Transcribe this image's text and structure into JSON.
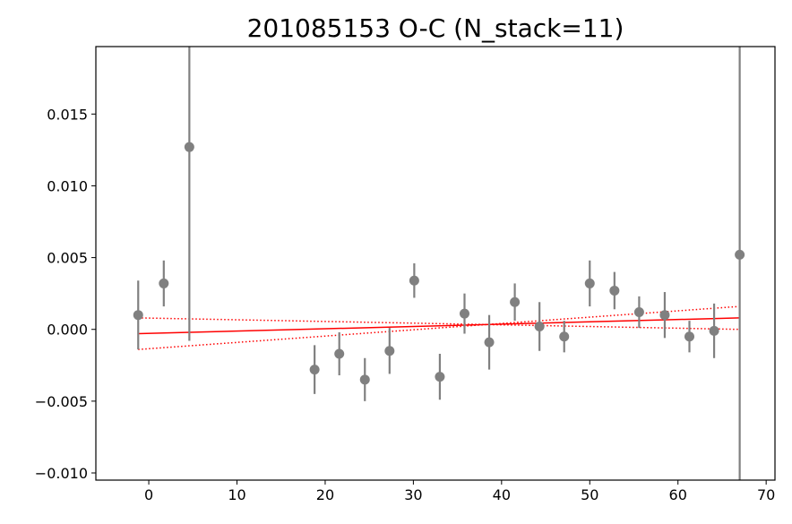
{
  "chart_data": {
    "type": "scatter",
    "title": "201085153 O-C (N_stack=11)",
    "xlabel": "",
    "ylabel": "",
    "xlim": [
      -6,
      71
    ],
    "ylim": [
      -0.0105,
      0.0197
    ],
    "xticks": [
      0,
      10,
      20,
      30,
      40,
      50,
      60,
      70
    ],
    "yticks": [
      -0.01,
      -0.005,
      0.0,
      0.005,
      0.01,
      0.015
    ],
    "xtick_labels": [
      "0",
      "10",
      "20",
      "30",
      "40",
      "50",
      "60",
      "70"
    ],
    "ytick_labels": [
      "−0.010",
      "−0.005",
      "0.000",
      "0.005",
      "0.010",
      "0.015"
    ],
    "grid": false,
    "colors": {
      "points": "#808080",
      "fit": "#ff0000"
    },
    "series": [
      {
        "type": "errorbar",
        "points": [
          {
            "x": -1.2,
            "y": 0.001,
            "yerr": 0.0024
          },
          {
            "x": 1.7,
            "y": 0.0032,
            "yerr": 0.0016
          },
          {
            "x": 4.6,
            "y": 0.0127,
            "yerr": 0.0135
          },
          {
            "x": 18.8,
            "y": -0.0028,
            "yerr": 0.0017
          },
          {
            "x": 21.6,
            "y": -0.0017,
            "yerr": 0.0015
          },
          {
            "x": 24.5,
            "y": -0.0035,
            "yerr": 0.0015
          },
          {
            "x": 27.3,
            "y": -0.0015,
            "yerr": 0.0016
          },
          {
            "x": 30.1,
            "y": 0.0034,
            "yerr": 0.0012
          },
          {
            "x": 33.0,
            "y": -0.0033,
            "yerr": 0.0016
          },
          {
            "x": 35.8,
            "y": 0.0011,
            "yerr": 0.0014
          },
          {
            "x": 38.6,
            "y": -0.0009,
            "yerr": 0.0019
          },
          {
            "x": 41.5,
            "y": 0.0019,
            "yerr": 0.0013
          },
          {
            "x": 44.3,
            "y": 0.0002,
            "yerr": 0.0017
          },
          {
            "x": 47.1,
            "y": -0.0005,
            "yerr": 0.0011
          },
          {
            "x": 50.0,
            "y": 0.0032,
            "yerr": 0.0016
          },
          {
            "x": 52.8,
            "y": 0.0027,
            "yerr": 0.0013
          },
          {
            "x": 55.6,
            "y": 0.0012,
            "yerr": 0.0011
          },
          {
            "x": 58.5,
            "y": 0.001,
            "yerr": 0.0016
          },
          {
            "x": 61.3,
            "y": -0.0005,
            "yerr": 0.0011
          },
          {
            "x": 64.1,
            "y": -0.0001,
            "yerr": 0.0019
          },
          {
            "x": 67.0,
            "y": 0.0052,
            "yerr": 0.016
          }
        ]
      },
      {
        "type": "line",
        "style": "solid",
        "x": [
          -1.2,
          67.0
        ],
        "y": [
          -0.0003,
          0.0008
        ]
      },
      {
        "type": "line",
        "style": "dotted",
        "x": [
          -1.2,
          67.0
        ],
        "y": [
          0.0008,
          0.0
        ]
      },
      {
        "type": "line",
        "style": "dotted",
        "x": [
          -1.2,
          67.0
        ],
        "y": [
          -0.0014,
          0.0016
        ]
      }
    ]
  }
}
